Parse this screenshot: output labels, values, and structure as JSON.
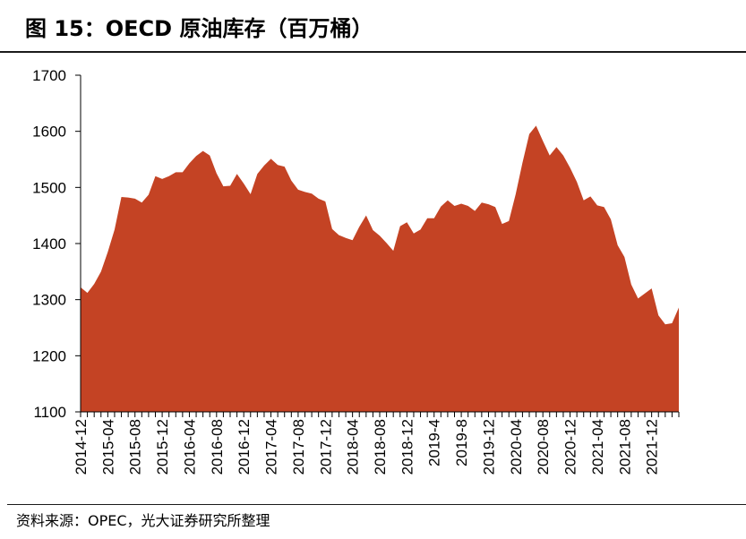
{
  "title": "图 15：OECD 原油库存（百万桶）",
  "source": "资料来源：OPEC，光大证券研究所整理",
  "colors": {
    "area": "#c44324",
    "axis": "#000000"
  },
  "chart_data": {
    "type": "area",
    "title": "图 15：OECD 原油库存（百万桶）",
    "xlabel": "",
    "ylabel": "",
    "ylim": [
      1100,
      1700
    ],
    "yticks": [
      1100,
      1200,
      1300,
      1400,
      1500,
      1600,
      1700
    ],
    "grid": false,
    "legend": "none",
    "xtick_labels": [
      "2014-12",
      "2015-04",
      "2015-08",
      "2015-12",
      "2016-04",
      "2016-08",
      "2016-12",
      "2017-04",
      "2017-08",
      "2017-12",
      "2018-04",
      "2018-08",
      "2018-12",
      "2019-4",
      "2019-8",
      "2019-12",
      "2020-04",
      "2020-08",
      "2020-12",
      "2021-04",
      "2021-08",
      "2021-12"
    ],
    "x": [
      "2014-12",
      "2015-01",
      "2015-02",
      "2015-03",
      "2015-04",
      "2015-05",
      "2015-06",
      "2015-07",
      "2015-08",
      "2015-09",
      "2015-10",
      "2015-11",
      "2015-12",
      "2016-01",
      "2016-02",
      "2016-03",
      "2016-04",
      "2016-05",
      "2016-06",
      "2016-07",
      "2016-08",
      "2016-09",
      "2016-10",
      "2016-11",
      "2016-12",
      "2017-01",
      "2017-02",
      "2017-03",
      "2017-04",
      "2017-05",
      "2017-06",
      "2017-07",
      "2017-08",
      "2017-09",
      "2017-10",
      "2017-11",
      "2017-12",
      "2018-01",
      "2018-02",
      "2018-03",
      "2018-04",
      "2018-05",
      "2018-06",
      "2018-07",
      "2018-08",
      "2018-09",
      "2018-10",
      "2018-11",
      "2018-12",
      "2019-01",
      "2019-02",
      "2019-03",
      "2019-04",
      "2019-05",
      "2019-06",
      "2019-07",
      "2019-08",
      "2019-09",
      "2019-10",
      "2019-11",
      "2019-12",
      "2020-01",
      "2020-02",
      "2020-03",
      "2020-04",
      "2020-05",
      "2020-06",
      "2020-07",
      "2020-08",
      "2020-09",
      "2020-10",
      "2020-11",
      "2020-12",
      "2021-01",
      "2021-02",
      "2021-03",
      "2021-04",
      "2021-05",
      "2021-06",
      "2021-07",
      "2021-08",
      "2021-09",
      "2021-10",
      "2021-11",
      "2021-12",
      "2022-01",
      "2022-02",
      "2022-03",
      "2022-04"
    ],
    "series": [
      {
        "name": "",
        "values": [
          1322,
          1312,
          1328,
          1350,
          1385,
          1425,
          1483,
          1482,
          1480,
          1473,
          1487,
          1520,
          1515,
          1520,
          1527,
          1527,
          1543,
          1556,
          1565,
          1557,
          1525,
          1502,
          1503,
          1524,
          1507,
          1488,
          1524,
          1539,
          1551,
          1540,
          1537,
          1512,
          1496,
          1492,
          1489,
          1480,
          1475,
          1426,
          1415,
          1410,
          1406,
          1430,
          1450,
          1424,
          1414,
          1401,
          1387,
          1431,
          1438,
          1418,
          1425,
          1445,
          1445,
          1466,
          1477,
          1467,
          1471,
          1467,
          1458,
          1473,
          1470,
          1465,
          1435,
          1440,
          1488,
          1544,
          1595,
          1610,
          1583,
          1557,
          1572,
          1557,
          1535,
          1510,
          1477,
          1484,
          1468,
          1465,
          1443,
          1397,
          1376,
          1327,
          1302,
          1311,
          1320,
          1272,
          1256,
          1258,
          1286
        ]
      }
    ]
  }
}
